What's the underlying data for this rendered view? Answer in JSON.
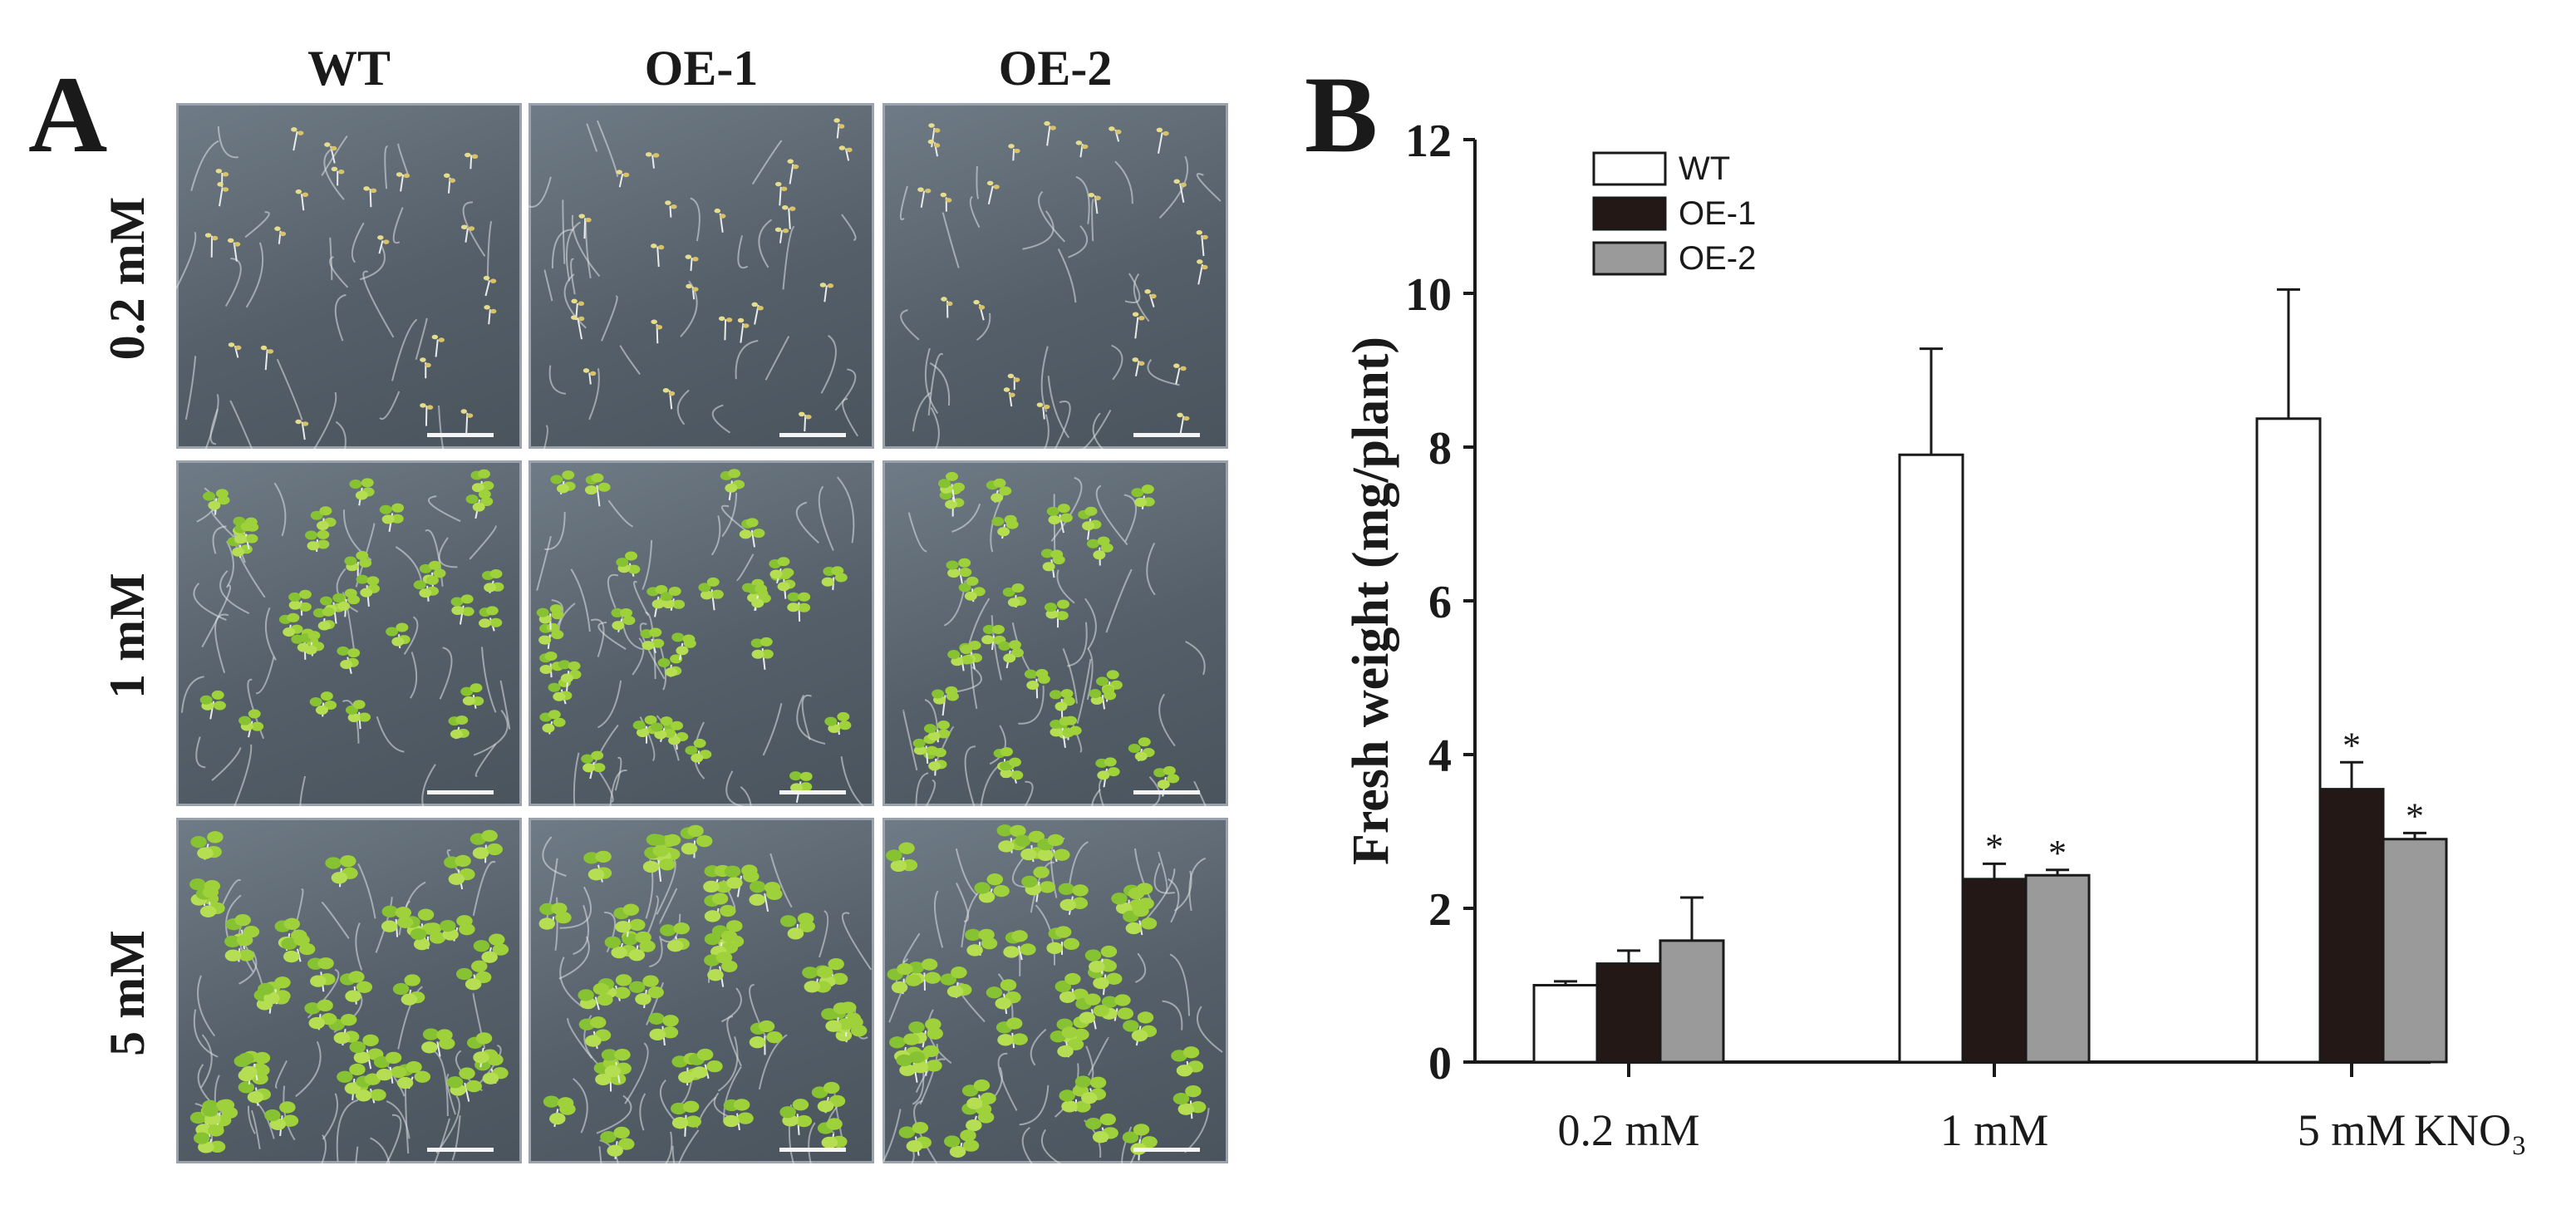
{
  "panel_a": {
    "letter": "A",
    "columns": [
      "WT",
      "OE-1",
      "OE-2"
    ],
    "rows": [
      "0.2 mM",
      "1 mM",
      "5 mM"
    ]
  },
  "panel_b": {
    "letter": "B"
  },
  "chart_data": {
    "type": "bar",
    "categories": [
      "0.2 mM",
      "1 mM",
      "5 mM"
    ],
    "category_suffix": "KNO₃",
    "ylabel": "Fresh weight (mg/plant)",
    "ylim": [
      0,
      12
    ],
    "yticks": [
      0,
      2,
      4,
      6,
      8,
      10,
      12
    ],
    "series": [
      {
        "name": "WT",
        "color": "#ffffff",
        "values": [
          1.0,
          7.9,
          8.37
        ],
        "errors": [
          0.05,
          1.38,
          1.68
        ],
        "significant": [
          false,
          false,
          false
        ]
      },
      {
        "name": "OE-1",
        "color": "#231815",
        "values": [
          1.28,
          2.38,
          3.55
        ],
        "errors": [
          0.17,
          0.2,
          0.35
        ],
        "significant": [
          false,
          true,
          true
        ]
      },
      {
        "name": "OE-2",
        "color": "#9a9a9a",
        "values": [
          1.58,
          2.43,
          2.9
        ],
        "errors": [
          0.56,
          0.07,
          0.08
        ],
        "significant": [
          false,
          true,
          true
        ]
      }
    ],
    "significance_marker": "*",
    "legend_position": "top-left"
  }
}
